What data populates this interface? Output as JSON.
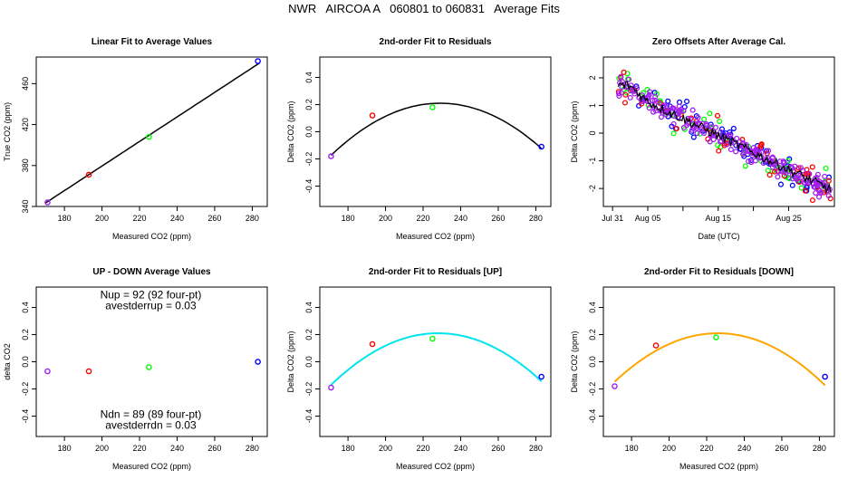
{
  "page_title": "NWR   AIRCOA A   060801 to 060831   Average Fits",
  "chart_data": [
    {
      "type": "scatter",
      "title": "Linear Fit to Average Values",
      "xlabel": "Measured CO2 (ppm)",
      "ylabel": "True CO2 (ppm)",
      "xlim": [
        165,
        288
      ],
      "ylim": [
        340,
        486
      ],
      "xticks": [
        180,
        200,
        220,
        240,
        260,
        280
      ],
      "yticks": [
        340,
        380,
        420,
        460
      ],
      "grid": false,
      "colors": {
        "purple": "#a020f0",
        "red": "#ff0000",
        "green": "#00ff00",
        "blue": "#0000ff",
        "fit": "#000000"
      },
      "points": [
        {
          "x": 171,
          "y": 344,
          "color": "purple"
        },
        {
          "x": 193,
          "y": 371,
          "color": "red"
        },
        {
          "x": 225,
          "y": 408,
          "color": "green"
        },
        {
          "x": 283,
          "y": 482,
          "color": "blue"
        }
      ],
      "fit": {
        "kind": "linear",
        "slope": 1.2,
        "intercept": 139.5,
        "x_range": [
          170,
          284
        ],
        "color": "fit",
        "width": 1.5
      }
    },
    {
      "type": "scatter",
      "title": "2nd-order Fit to Residuals",
      "xlabel": "Measured CO2 (ppm)",
      "ylabel": "Delta CO2 (ppm)",
      "xlim": [
        165,
        288
      ],
      "ylim": [
        -0.55,
        0.55
      ],
      "xticks": [
        180,
        200,
        220,
        240,
        260,
        280
      ],
      "yticks": [
        -0.4,
        -0.2,
        0.0,
        0.2,
        0.4
      ],
      "ytick_labels": [
        "-0.4",
        "-0.2",
        "0.0",
        "0.2",
        "0.4"
      ],
      "grid": false,
      "colors": {
        "purple": "#a020f0",
        "red": "#ff0000",
        "green": "#00ff00",
        "blue": "#0000ff",
        "fit": "#000000"
      },
      "points": [
        {
          "x": 171,
          "y": -0.18,
          "color": "purple"
        },
        {
          "x": 193,
          "y": 0.12,
          "color": "red"
        },
        {
          "x": 225,
          "y": 0.18,
          "color": "green"
        },
        {
          "x": 283,
          "y": -0.11,
          "color": "blue"
        }
      ],
      "fit": {
        "kind": "quadratic",
        "vertex_x": 229,
        "vertex_y": 0.21,
        "a": -0.000114,
        "x_range": [
          171,
          283
        ],
        "color": "fit",
        "width": 1.5
      }
    },
    {
      "type": "scatter",
      "title": "Zero Offsets After Average Cal.",
      "xlabel": "Date (UTC)",
      "ylabel": "Delta CO2 (ppm)",
      "xlim": [
        -1.3,
        31.5
      ],
      "ylim": [
        -2.65,
        2.75
      ],
      "xticks": [
        0,
        5,
        10,
        15,
        20,
        25
      ],
      "xtick_labels": [
        "Jul 31",
        "Aug 05",
        "",
        "Aug 15",
        "",
        "Aug 25"
      ],
      "yticks": [
        -2,
        -1,
        0,
        1,
        2
      ],
      "grid": false,
      "colors": {
        "purple": "#a020f0",
        "red": "#ff0000",
        "green": "#00ff00",
        "blue": "#0000ff",
        "fit": "#000000"
      },
      "trend": {
        "start_day": 0.8,
        "end_day": 31.0,
        "start_value": 1.65,
        "end_value": -2.05,
        "early_peak": 0.25
      },
      "series_counts": {
        "purple": 230,
        "red": 55,
        "green": 55,
        "blue": 55
      },
      "spread": {
        "purple": 0.18,
        "red": 0.3,
        "green": 0.3,
        "blue": 0.3
      }
    },
    {
      "type": "scatter",
      "title": "UP - DOWN Average Values",
      "xlabel": "Measured CO2 (ppm)",
      "ylabel": "delta CO2",
      "xlim": [
        165,
        288
      ],
      "ylim": [
        -0.55,
        0.55
      ],
      "xticks": [
        180,
        200,
        220,
        240,
        260,
        280
      ],
      "yticks": [
        -0.4,
        -0.2,
        0.0,
        0.2,
        0.4
      ],
      "ytick_labels": [
        "-0.4",
        "-0.2",
        "0.0",
        "0.2",
        "0.4"
      ],
      "grid": false,
      "colors": {
        "purple": "#a020f0",
        "red": "#ff0000",
        "green": "#00ff00",
        "blue": "#0000ff"
      },
      "points": [
        {
          "x": 171,
          "y": -0.07,
          "color": "purple"
        },
        {
          "x": 193,
          "y": -0.07,
          "color": "red"
        },
        {
          "x": 225,
          "y": -0.04,
          "color": "green"
        },
        {
          "x": 283,
          "y": 0.0,
          "color": "blue"
        }
      ],
      "annotations": [
        {
          "text": "Nup = 92 (92 four-pt)",
          "x": 226,
          "y": 0.495
        },
        {
          "text": "avestderrup =  0.03",
          "x": 226,
          "y": 0.415
        },
        {
          "text": "Ndn = 89 (89 four-pt)",
          "x": 226,
          "y": -0.385
        },
        {
          "text": "avestderrdn =  0.03",
          "x": 226,
          "y": -0.465
        }
      ]
    },
    {
      "type": "scatter",
      "title": "2nd-order Fit to Residuals [UP]",
      "xlabel": "Measured CO2 (ppm)",
      "ylabel": "Delta CO2 (ppm)",
      "xlim": [
        165,
        288
      ],
      "ylim": [
        -0.55,
        0.55
      ],
      "xticks": [
        180,
        200,
        220,
        240,
        260,
        280
      ],
      "yticks": [
        -0.4,
        -0.2,
        0.0,
        0.2,
        0.4
      ],
      "ytick_labels": [
        "-0.4",
        "-0.2",
        "0.0",
        "0.2",
        "0.4"
      ],
      "grid": false,
      "colors": {
        "purple": "#a020f0",
        "red": "#ff0000",
        "green": "#00ff00",
        "blue": "#0000ff",
        "fit": "#00e5ee"
      },
      "points": [
        {
          "x": 171,
          "y": -0.19,
          "color": "purple"
        },
        {
          "x": 193,
          "y": 0.13,
          "color": "red"
        },
        {
          "x": 225,
          "y": 0.17,
          "color": "green"
        },
        {
          "x": 283,
          "y": -0.11,
          "color": "blue"
        }
      ],
      "fit": {
        "kind": "quadratic",
        "vertex_x": 228,
        "vertex_y": 0.21,
        "a": -0.000117,
        "x_range": [
          171,
          283
        ],
        "color": "fit",
        "width": 2
      }
    },
    {
      "type": "scatter",
      "title": "2nd-order Fit to Residuals [DOWN]",
      "xlabel": "Measured CO2 (ppm)",
      "ylabel": "Delta CO2 (ppm)",
      "xlim": [
        165,
        288
      ],
      "ylim": [
        -0.55,
        0.55
      ],
      "xticks": [
        180,
        200,
        220,
        240,
        260,
        280
      ],
      "yticks": [
        -0.4,
        -0.2,
        0.0,
        0.2,
        0.4
      ],
      "ytick_labels": [
        "-0.4",
        "-0.2",
        "0.0",
        "0.2",
        "0.4"
      ],
      "grid": false,
      "colors": {
        "purple": "#a020f0",
        "red": "#ff0000",
        "green": "#00ff00",
        "blue": "#0000ff",
        "fit": "#ffa500"
      },
      "points": [
        {
          "x": 171,
          "y": -0.18,
          "color": "purple"
        },
        {
          "x": 193,
          "y": 0.12,
          "color": "red"
        },
        {
          "x": 225,
          "y": 0.18,
          "color": "green"
        },
        {
          "x": 283,
          "y": -0.11,
          "color": "blue"
        }
      ],
      "fit": {
        "kind": "quadratic",
        "vertex_x": 226,
        "vertex_y": 0.21,
        "a": -0.000118,
        "x_range": [
          171,
          283
        ],
        "color": "fit",
        "width": 2
      }
    }
  ]
}
